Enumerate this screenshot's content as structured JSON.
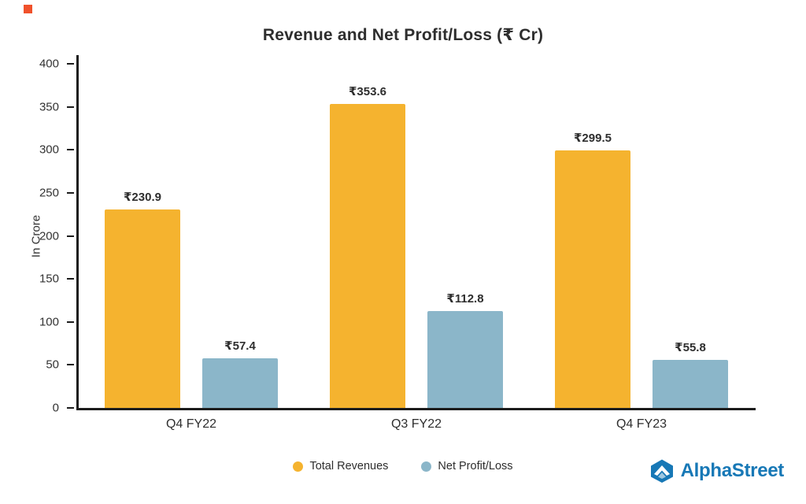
{
  "chart_data": {
    "type": "bar",
    "title": "Revenue and Net Profit/Loss (₹ Cr)",
    "ylabel": "In Crore",
    "categories": [
      "Q4 FY22",
      "Q3 FY22",
      "Q4 FY23"
    ],
    "series": [
      {
        "name": "Total Revenues",
        "color": "#F5B32F",
        "values": [
          230.9,
          353.6,
          299.5
        ],
        "labels": [
          "₹230.9",
          "₹353.6",
          "₹299.5"
        ]
      },
      {
        "name": "Net Profit/Loss",
        "color": "#8BB6C9",
        "values": [
          57.4,
          112.8,
          55.8
        ],
        "labels": [
          "₹57.4",
          "₹112.8",
          "₹55.8"
        ]
      }
    ],
    "ylim": [
      0,
      400
    ],
    "yticks": [
      0,
      50,
      100,
      150,
      200,
      250,
      300,
      350,
      400
    ],
    "grid": false,
    "legend_position": "bottom"
  },
  "branding": {
    "name": "AlphaStreet",
    "color": "#1778b6"
  }
}
